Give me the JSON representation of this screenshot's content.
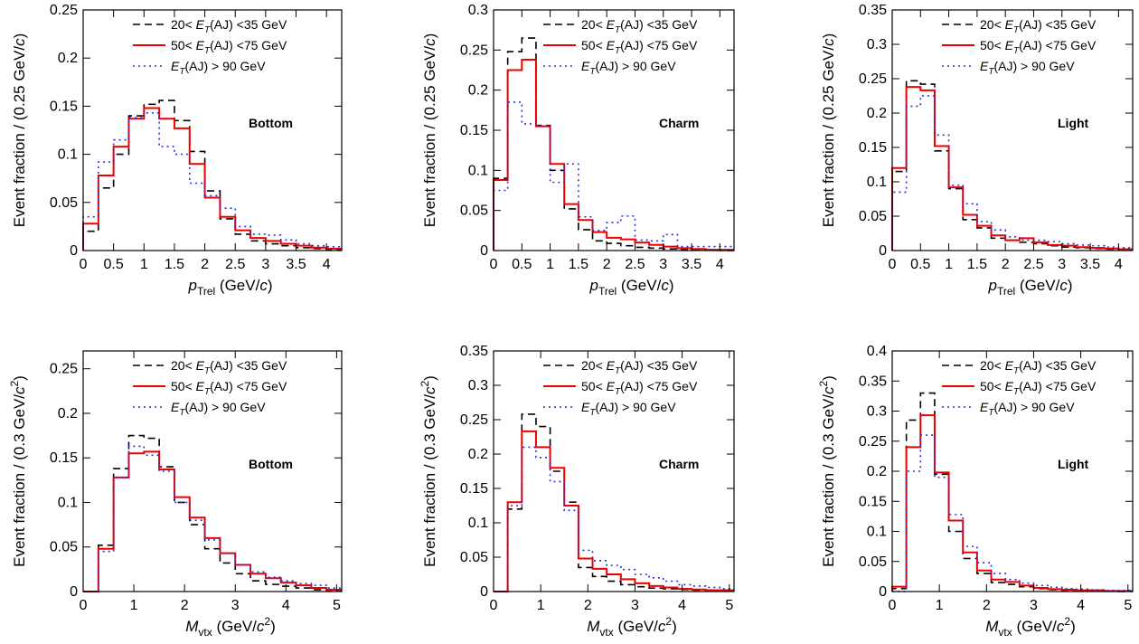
{
  "legend": [
    {
      "parts": [
        "20< ",
        "E",
        "T",
        "(AJ) <35 GeV"
      ],
      "color": "#000000",
      "dash": "8,5"
    },
    {
      "parts": [
        "50< ",
        "E",
        "T",
        "(AJ) <75 GeV"
      ],
      "color": "#ee0000",
      "dash": ""
    },
    {
      "parts": [
        "",
        "E",
        "T",
        "(AJ) > 90 GeV"
      ],
      "color": "#2233dd",
      "dash": "2,4"
    }
  ],
  "chart_data": [
    {
      "type": "histogram",
      "label": "Bottom",
      "xlabel": {
        "main": "p",
        "sub": "Trel",
        "rest": " (GeV/",
        "ital": "c",
        "close": ")",
        "sup": ""
      },
      "ylabel": {
        "main": "Event fraction / (0.25 GeV/",
        "ital": "c",
        "sup": "",
        "close": ")"
      },
      "xlim": [
        0,
        4.25
      ],
      "ylim": [
        0,
        0.25
      ],
      "xticks": [
        "0",
        "0.5",
        "1",
        "1.5",
        "2",
        "2.5",
        "3",
        "3.5",
        "4"
      ],
      "xtick_values": [
        0,
        0.5,
        1,
        1.5,
        2,
        2.5,
        3,
        3.5,
        4
      ],
      "yticks": [
        "0",
        "0.05",
        "0.1",
        "0.15",
        "0.2",
        "0.25"
      ],
      "ytick_values": [
        0,
        0.05,
        0.1,
        0.15,
        0.2,
        0.25
      ],
      "bin_edges": [
        0,
        0.25,
        0.5,
        0.75,
        1,
        1.25,
        1.5,
        1.75,
        2,
        2.25,
        2.5,
        2.75,
        3,
        3.25,
        3.5,
        3.75,
        4,
        4.25
      ],
      "series": [
        {
          "name": "20< ET(AJ) <35 GeV",
          "values": [
            0.02,
            0.065,
            0.1,
            0.14,
            0.152,
            0.156,
            0.135,
            0.103,
            0.062,
            0.033,
            0.017,
            0.01,
            0.007,
            0.005,
            0.003,
            0.002,
            0.001
          ]
        },
        {
          "name": "50< ET(AJ) <75 GeV",
          "values": [
            0.028,
            0.078,
            0.108,
            0.137,
            0.148,
            0.137,
            0.127,
            0.09,
            0.055,
            0.035,
            0.021,
            0.013,
            0.01,
            0.007,
            0.005,
            0.003,
            0.002
          ]
        },
        {
          "name": "ET(AJ) > 90 GeV",
          "values": [
            0.035,
            0.092,
            0.115,
            0.138,
            0.143,
            0.108,
            0.1,
            0.07,
            0.057,
            0.044,
            0.025,
            0.017,
            0.016,
            0.011,
            0.007,
            0.005,
            0.004
          ]
        }
      ]
    },
    {
      "type": "histogram",
      "label": "Charm",
      "xlabel": {
        "main": "p",
        "sub": "Trel",
        "rest": " (GeV/",
        "ital": "c",
        "close": ")",
        "sup": ""
      },
      "ylabel": {
        "main": "Event fraction / (0.25 GeV/",
        "ital": "c",
        "sup": "",
        "close": ")"
      },
      "xlim": [
        0,
        4.25
      ],
      "ylim": [
        0,
        0.3
      ],
      "xticks": [
        "0",
        "0.5",
        "1",
        "1.5",
        "2",
        "2.5",
        "3",
        "3.5",
        "4"
      ],
      "xtick_values": [
        0,
        0.5,
        1,
        1.5,
        2,
        2.5,
        3,
        3.5,
        4
      ],
      "yticks": [
        "0",
        "0.05",
        "0.1",
        "0.15",
        "0.2",
        "0.25",
        "0.3"
      ],
      "ytick_values": [
        0,
        0.05,
        0.1,
        0.15,
        0.2,
        0.25,
        0.3
      ],
      "bin_edges": [
        0,
        0.25,
        0.5,
        0.75,
        1,
        1.25,
        1.5,
        1.75,
        2,
        2.25,
        2.5,
        2.75,
        3,
        3.25,
        3.5,
        3.75,
        4,
        4.25
      ],
      "series": [
        {
          "name": "20< ET(AJ) <35 GeV",
          "values": [
            0.09,
            0.248,
            0.265,
            0.156,
            0.1,
            0.052,
            0.026,
            0.012,
            0.009,
            0.006,
            0.004,
            0.003,
            0.002,
            0.001,
            0.001,
            0.001,
            0.0
          ]
        },
        {
          "name": "50< ET(AJ) <75 GeV",
          "values": [
            0.088,
            0.225,
            0.238,
            0.155,
            0.108,
            0.058,
            0.038,
            0.023,
            0.016,
            0.014,
            0.01,
            0.007,
            0.005,
            0.003,
            0.002,
            0.001,
            0.001
          ]
        },
        {
          "name": "ET(AJ) > 90 GeV",
          "values": [
            0.075,
            0.185,
            0.158,
            0.155,
            0.085,
            0.108,
            0.042,
            0.025,
            0.035,
            0.043,
            0.013,
            0.012,
            0.02,
            0.005,
            0.005,
            0.005,
            0.005
          ]
        }
      ]
    },
    {
      "type": "histogram",
      "label": "Light",
      "xlabel": {
        "main": "p",
        "sub": "Trel",
        "rest": " (GeV/",
        "ital": "c",
        "close": ")",
        "sup": ""
      },
      "ylabel": {
        "main": "Event fraction / (0.25 GeV/",
        "ital": "c",
        "sup": "",
        "close": ")"
      },
      "xlim": [
        0,
        4.25
      ],
      "ylim": [
        0,
        0.35
      ],
      "xticks": [
        "0",
        "0.5",
        "1",
        "1.5",
        "2",
        "2.5",
        "3",
        "3.5",
        "4"
      ],
      "xtick_values": [
        0,
        0.5,
        1,
        1.5,
        2,
        2.5,
        3,
        3.5,
        4
      ],
      "yticks": [
        "0",
        "0.05",
        "0.1",
        "0.15",
        "0.2",
        "0.25",
        "0.3",
        "0.35"
      ],
      "ytick_values": [
        0,
        0.05,
        0.1,
        0.15,
        0.2,
        0.25,
        0.3,
        0.35
      ],
      "bin_edges": [
        0,
        0.25,
        0.5,
        0.75,
        1,
        1.25,
        1.5,
        1.75,
        2,
        2.25,
        2.5,
        2.75,
        3,
        3.25,
        3.5,
        3.75,
        4,
        4.25
      ],
      "series": [
        {
          "name": "20< ET(AJ) <35 GeV",
          "values": [
            0.115,
            0.247,
            0.242,
            0.145,
            0.09,
            0.045,
            0.033,
            0.018,
            0.015,
            0.012,
            0.01,
            0.007,
            0.005,
            0.004,
            0.003,
            0.002,
            0.001
          ]
        },
        {
          "name": "50< ET(AJ) <75 GeV",
          "values": [
            0.12,
            0.238,
            0.233,
            0.152,
            0.092,
            0.052,
            0.036,
            0.022,
            0.015,
            0.018,
            0.012,
            0.008,
            0.007,
            0.005,
            0.004,
            0.003,
            0.002
          ]
        },
        {
          "name": "ET(AJ) > 90 GeV",
          "values": [
            0.085,
            0.21,
            0.225,
            0.168,
            0.095,
            0.068,
            0.042,
            0.03,
            0.02,
            0.015,
            0.015,
            0.013,
            0.01,
            0.008,
            0.007,
            0.005,
            0.004
          ]
        }
      ]
    },
    {
      "type": "histogram",
      "label": "Bottom",
      "xlabel": {
        "main": "M",
        "sub": "vtx",
        "rest": " (GeV/",
        "ital": "c",
        "close": ")",
        "sup": "2"
      },
      "ylabel": {
        "main": "Event fraction / (0.3 GeV/",
        "ital": "c",
        "sup": "2",
        "close": ")"
      },
      "xlim": [
        0,
        5.1
      ],
      "ylim": [
        0,
        0.27
      ],
      "xticks": [
        "0",
        "1",
        "2",
        "3",
        "4",
        "5"
      ],
      "xtick_values": [
        0,
        1,
        2,
        3,
        4,
        5
      ],
      "yticks": [
        "0",
        "0.05",
        "0.1",
        "0.15",
        "0.2",
        "0.25"
      ],
      "ytick_values": [
        0,
        0.05,
        0.1,
        0.15,
        0.2,
        0.25
      ],
      "bin_edges": [
        0,
        0.3,
        0.6,
        0.9,
        1.2,
        1.5,
        1.8,
        2.1,
        2.4,
        2.7,
        3.0,
        3.3,
        3.6,
        3.9,
        4.2,
        4.5,
        4.8,
        5.1
      ],
      "series": [
        {
          "name": "20< ET(AJ) <35 GeV",
          "values": [
            0.0,
            0.052,
            0.138,
            0.175,
            0.172,
            0.14,
            0.1,
            0.075,
            0.048,
            0.032,
            0.02,
            0.012,
            0.008,
            0.006,
            0.004,
            0.002,
            0.001
          ]
        },
        {
          "name": "50< ET(AJ) <75 GeV",
          "values": [
            0.0,
            0.048,
            0.128,
            0.155,
            0.157,
            0.137,
            0.106,
            0.083,
            0.06,
            0.043,
            0.03,
            0.02,
            0.015,
            0.01,
            0.007,
            0.004,
            0.002
          ]
        },
        {
          "name": "ET(AJ) > 90 GeV",
          "values": [
            0.0,
            0.045,
            0.128,
            0.163,
            0.153,
            0.135,
            0.1,
            0.08,
            0.058,
            0.043,
            0.03,
            0.022,
            0.016,
            0.012,
            0.009,
            0.007,
            0.004
          ]
        }
      ]
    },
    {
      "type": "histogram",
      "label": "Charm",
      "xlabel": {
        "main": "M",
        "sub": "vtx",
        "rest": " (GeV/",
        "ital": "c",
        "close": ")",
        "sup": "2"
      },
      "ylabel": {
        "main": "Event fraction / (0.3 GeV/",
        "ital": "c",
        "sup": "2",
        "close": ")"
      },
      "xlim": [
        0,
        5.1
      ],
      "ylim": [
        0,
        0.35
      ],
      "xticks": [
        "0",
        "1",
        "2",
        "3",
        "4",
        "5"
      ],
      "xtick_values": [
        0,
        1,
        2,
        3,
        4,
        5
      ],
      "yticks": [
        "0",
        "0.05",
        "0.1",
        "0.15",
        "0.2",
        "0.25",
        "0.3",
        "0.35"
      ],
      "ytick_values": [
        0,
        0.05,
        0.1,
        0.15,
        0.2,
        0.25,
        0.3,
        0.35
      ],
      "bin_edges": [
        0,
        0.3,
        0.6,
        0.9,
        1.2,
        1.5,
        1.8,
        2.1,
        2.4,
        2.7,
        3.0,
        3.3,
        3.6,
        3.9,
        4.2,
        4.5,
        4.8,
        5.1
      ],
      "series": [
        {
          "name": "20< ET(AJ) <35 GeV",
          "values": [
            0.0,
            0.12,
            0.258,
            0.24,
            0.175,
            0.13,
            0.035,
            0.022,
            0.015,
            0.01,
            0.007,
            0.005,
            0.004,
            0.003,
            0.002,
            0.001,
            0.001
          ]
        },
        {
          "name": "50< ET(AJ) <75 GeV",
          "values": [
            0.0,
            0.13,
            0.233,
            0.21,
            0.18,
            0.125,
            0.048,
            0.033,
            0.025,
            0.018,
            0.012,
            0.008,
            0.006,
            0.004,
            0.003,
            0.002,
            0.002
          ]
        },
        {
          "name": "ET(AJ) > 90 GeV",
          "values": [
            0.0,
            0.125,
            0.21,
            0.195,
            0.16,
            0.118,
            0.06,
            0.045,
            0.038,
            0.032,
            0.025,
            0.02,
            0.015,
            0.01,
            0.008,
            0.006,
            0.004
          ]
        }
      ]
    },
    {
      "type": "histogram",
      "label": "Light",
      "xlabel": {
        "main": "M",
        "sub": "vtx",
        "rest": " (GeV/",
        "ital": "c",
        "close": ")",
        "sup": "2"
      },
      "ylabel": {
        "main": "Event fraction / (0.3 GeV/",
        "ital": "c",
        "sup": "2",
        "close": ")"
      },
      "xlim": [
        0,
        5.1
      ],
      "ylim": [
        0,
        0.4
      ],
      "xticks": [
        "0",
        "1",
        "2",
        "3",
        "4",
        "5"
      ],
      "xtick_values": [
        0,
        1,
        2,
        3,
        4,
        5
      ],
      "yticks": [
        "0",
        "0.05",
        "0.1",
        "0.15",
        "0.2",
        "0.25",
        "0.3",
        "0.35",
        "0.4"
      ],
      "ytick_values": [
        0,
        0.05,
        0.1,
        0.15,
        0.2,
        0.25,
        0.3,
        0.35,
        0.4
      ],
      "bin_edges": [
        0,
        0.3,
        0.6,
        0.9,
        1.2,
        1.5,
        1.8,
        2.1,
        2.4,
        2.7,
        3.0,
        3.3,
        3.6,
        3.9,
        4.2,
        4.5,
        4.8,
        5.1
      ],
      "series": [
        {
          "name": "20< ET(AJ) <35 GeV",
          "values": [
            0.005,
            0.285,
            0.33,
            0.195,
            0.1,
            0.055,
            0.03,
            0.015,
            0.012,
            0.008,
            0.005,
            0.003,
            0.002,
            0.002,
            0.001,
            0.001,
            0.0
          ]
        },
        {
          "name": "50< ET(AJ) <75 GeV",
          "values": [
            0.008,
            0.24,
            0.293,
            0.198,
            0.118,
            0.065,
            0.035,
            0.02,
            0.016,
            0.01,
            0.006,
            0.004,
            0.003,
            0.002,
            0.002,
            0.001,
            0.001
          ]
        },
        {
          "name": "ET(AJ) > 90 GeV",
          "values": [
            0.0,
            0.2,
            0.26,
            0.19,
            0.128,
            0.075,
            0.048,
            0.03,
            0.02,
            0.014,
            0.01,
            0.007,
            0.005,
            0.004,
            0.003,
            0.002,
            0.002
          ]
        }
      ]
    }
  ]
}
